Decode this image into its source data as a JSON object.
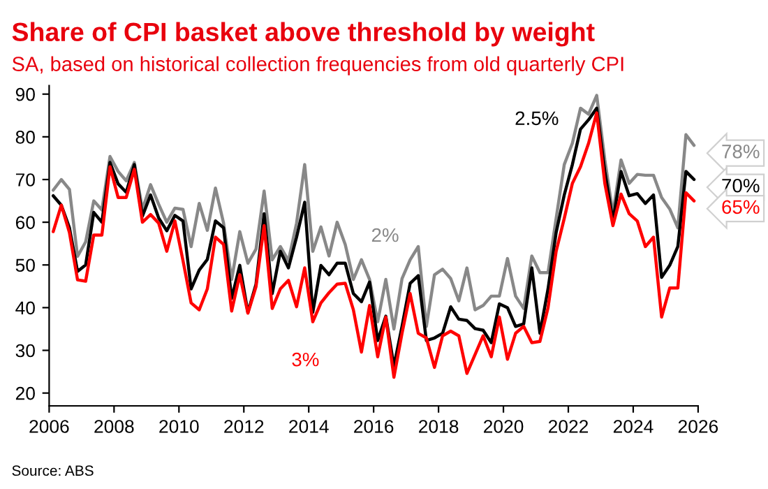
{
  "chart_data": {
    "type": "line",
    "title": "Share of CPI basket above threshold by weight",
    "subtitle": "SA, based on historical collection frequencies from old quarterly CPI",
    "x": [
      2006.125,
      2006.375,
      2006.625,
      2006.875,
      2007.125,
      2007.375,
      2007.625,
      2007.875,
      2008.125,
      2008.375,
      2008.625,
      2008.875,
      2009.125,
      2009.375,
      2009.625,
      2009.875,
      2010.125,
      2010.375,
      2010.625,
      2010.875,
      2011.125,
      2011.375,
      2011.625,
      2011.875,
      2012.125,
      2012.375,
      2012.625,
      2012.875,
      2013.125,
      2013.375,
      2013.625,
      2013.875,
      2014.125,
      2014.375,
      2014.625,
      2014.875,
      2015.125,
      2015.375,
      2015.625,
      2015.875,
      2016.125,
      2016.375,
      2016.625,
      2016.875,
      2017.125,
      2017.375,
      2017.625,
      2017.875,
      2018.125,
      2018.375,
      2018.625,
      2018.875,
      2019.125,
      2019.375,
      2019.625,
      2019.875,
      2020.125,
      2020.375,
      2020.625,
      2020.875,
      2021.125,
      2021.375,
      2021.625,
      2021.875,
      2022.125,
      2022.375,
      2022.625,
      2022.875,
      2023.125,
      2023.375,
      2023.625,
      2023.875,
      2024.125,
      2024.375,
      2024.625,
      2024.875,
      2025.125,
      2025.375,
      2025.625,
      2025.875
    ],
    "series": [
      {
        "name": "2%",
        "color": "#888888",
        "values": [
          67.5,
          70,
          67.7,
          52,
          55.4,
          65,
          62.9,
          75.4,
          71.9,
          69.7,
          74,
          63,
          68.8,
          64.2,
          60,
          63.3,
          63,
          54.3,
          64.4,
          58.1,
          68,
          59.8,
          46.6,
          57.8,
          50.4,
          53.7,
          67.3,
          51.2,
          54.3,
          51,
          59.8,
          73.5,
          53.2,
          58.9,
          52.1,
          60,
          54.8,
          46.6,
          51.2,
          46.6,
          36.7,
          46.6,
          35,
          46.8,
          51.2,
          54.3,
          35.6,
          47.7,
          49,
          46.8,
          41.6,
          49.3,
          39.5,
          40.5,
          42.7,
          42.7,
          51.5,
          42.7,
          39.8,
          52.1,
          48.2,
          48.2,
          60.9,
          73.5,
          78.5,
          86.7,
          85.3,
          89.7,
          74.6,
          62,
          74.6,
          69.1,
          71.2,
          71,
          71,
          65.8,
          63.1,
          58.7,
          80.5,
          78
        ],
        "value_labels": [
          null,
          null,
          null,
          null,
          null,
          null,
          null,
          null,
          null,
          null,
          null,
          null,
          null,
          null,
          null,
          null,
          null,
          null,
          null,
          null,
          null,
          null,
          null,
          null,
          null,
          null,
          null,
          null,
          null,
          null,
          null,
          null,
          null,
          null,
          null,
          null,
          null,
          null,
          null,
          null,
          null,
          null,
          null,
          null,
          null,
          null,
          null,
          null,
          null,
          null,
          null,
          null,
          null,
          null,
          null,
          null,
          null,
          null,
          null,
          null,
          null,
          null,
          null,
          null,
          null,
          null,
          null,
          null,
          null,
          null,
          null,
          null,
          null,
          null,
          null,
          null,
          null,
          null,
          null,
          "78%"
        ]
      },
      {
        "name": "2.5%",
        "color": "#000000",
        "values": [
          66.2,
          64,
          58.7,
          48.5,
          50,
          62.3,
          60,
          74,
          69,
          67,
          73.5,
          61.4,
          66.4,
          61,
          58,
          61.6,
          60.3,
          44.4,
          48.8,
          51.3,
          60.3,
          58.7,
          42.2,
          49.9,
          38.9,
          45.5,
          62,
          43.3,
          53.2,
          49.3,
          56.5,
          64.7,
          38.9,
          49.9,
          47.7,
          50.4,
          50.4,
          43.3,
          41.4,
          46,
          32.3,
          38,
          26.3,
          35.6,
          45.7,
          47.5,
          32.3,
          32.9,
          34,
          40.2,
          37.3,
          37,
          35.1,
          34.7,
          31.8,
          40.9,
          40,
          35.6,
          36.2,
          49.3,
          34,
          44.4,
          57.6,
          66.4,
          73.5,
          81.8,
          84,
          86.7,
          71.9,
          60.3,
          71.9,
          66.2,
          66.7,
          64.4,
          66.4,
          47.1,
          49.9,
          54.3,
          71.9,
          70
        ],
        "value_labels": [
          null,
          null,
          null,
          null,
          null,
          null,
          null,
          null,
          null,
          null,
          null,
          null,
          null,
          null,
          null,
          null,
          null,
          null,
          null,
          null,
          null,
          null,
          null,
          null,
          null,
          null,
          null,
          null,
          null,
          null,
          null,
          null,
          null,
          null,
          null,
          null,
          null,
          null,
          null,
          null,
          null,
          null,
          null,
          null,
          null,
          null,
          null,
          null,
          null,
          null,
          null,
          null,
          null,
          null,
          null,
          null,
          null,
          null,
          null,
          null,
          null,
          null,
          null,
          null,
          null,
          null,
          null,
          null,
          null,
          null,
          null,
          null,
          null,
          null,
          null,
          null,
          null,
          null,
          null,
          "70%"
        ]
      },
      {
        "name": "3%",
        "color": "#ff0000",
        "values": [
          57.8,
          64,
          57.6,
          46.5,
          46.2,
          57,
          57,
          73,
          65.8,
          65.8,
          72.4,
          60,
          61.8,
          59.8,
          53.2,
          60.3,
          51,
          41.1,
          39.5,
          44.4,
          56.5,
          54.8,
          39.2,
          47.7,
          38.7,
          44.9,
          59.2,
          39.8,
          44.4,
          46.4,
          40.2,
          49.3,
          36.7,
          41.1,
          43.5,
          45.5,
          45.7,
          39.5,
          29.6,
          40.5,
          28.5,
          37.8,
          23.7,
          34,
          43.3,
          34,
          32.9,
          26,
          33.4,
          34.5,
          33.4,
          24.6,
          29,
          33.4,
          28.5,
          37.8,
          27.9,
          34,
          35.6,
          31.8,
          32.1,
          40,
          53.2,
          60.9,
          69.1,
          73,
          78.5,
          85.6,
          69.1,
          59.2,
          66.6,
          62,
          60.3,
          54.3,
          56.5,
          37.8,
          44.6,
          44.6,
          66.9,
          65
        ],
        "value_labels": [
          null,
          null,
          null,
          null,
          null,
          null,
          null,
          null,
          null,
          null,
          null,
          null,
          null,
          null,
          null,
          null,
          null,
          null,
          null,
          null,
          null,
          null,
          null,
          null,
          null,
          null,
          null,
          null,
          null,
          null,
          null,
          null,
          null,
          null,
          null,
          null,
          null,
          null,
          null,
          null,
          null,
          null,
          null,
          null,
          null,
          null,
          null,
          null,
          null,
          null,
          null,
          null,
          null,
          null,
          null,
          null,
          null,
          null,
          null,
          null,
          null,
          null,
          null,
          null,
          null,
          null,
          null,
          null,
          null,
          null,
          null,
          null,
          null,
          null,
          null,
          null,
          null,
          null,
          null,
          "65%"
        ]
      }
    ],
    "annotations": [
      "Source: ABS"
    ],
    "xlim": [
      2006,
      2026
    ],
    "xticks": [
      2006,
      2008,
      2010,
      2012,
      2014,
      2016,
      2018,
      2020,
      2022,
      2024,
      2026
    ],
    "ylim": [
      17,
      92
    ],
    "yticks": [
      20,
      30,
      40,
      50,
      60,
      70,
      80,
      90
    ],
    "grid": false,
    "legend": false,
    "marker": "none",
    "line_style": "solid"
  }
}
